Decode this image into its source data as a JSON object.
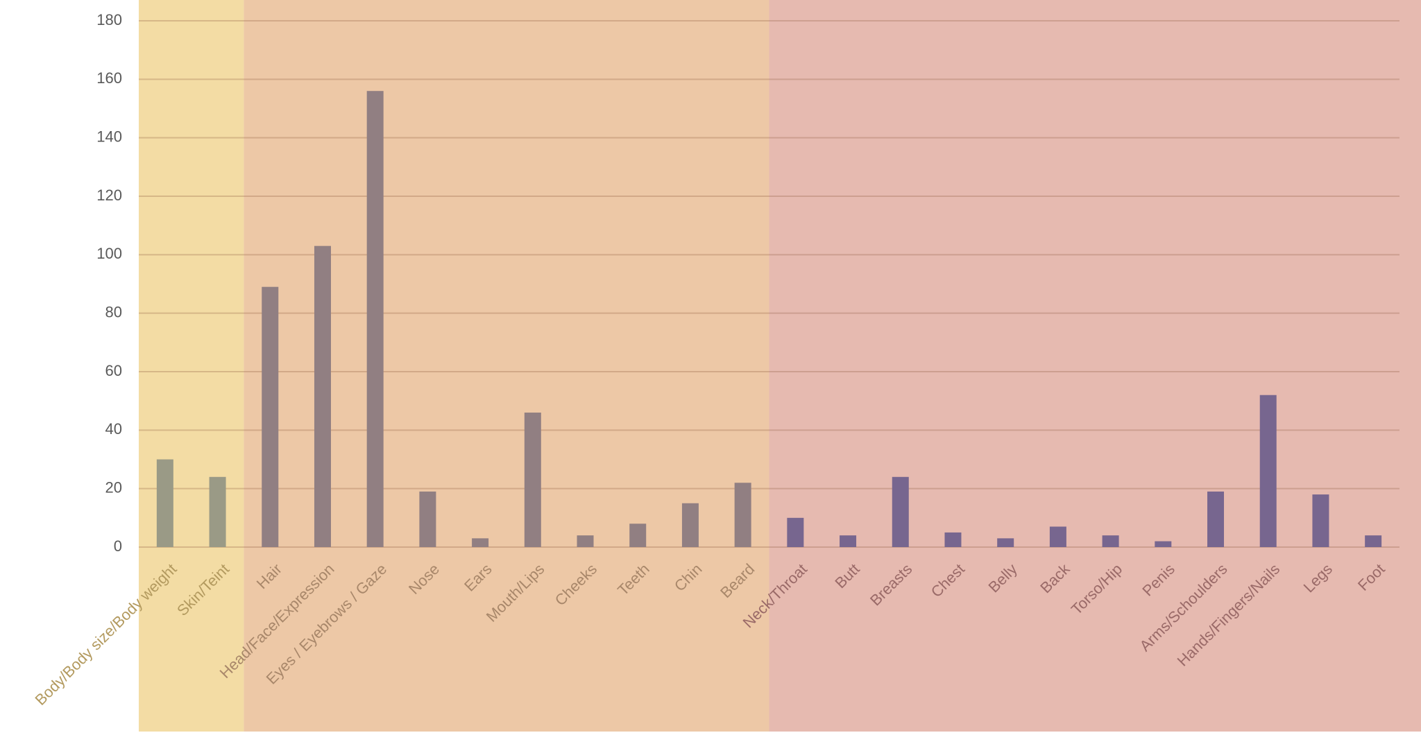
{
  "chart_data": {
    "type": "bar",
    "categories": [
      "Body/Body size/Body weight",
      "Skin/Teint",
      "Hair",
      "Head/Face/Expression",
      "Eyes / Eyebrows / Gaze",
      "Nose",
      "Ears",
      "Mouth/Lips",
      "Cheeks",
      "Teeth",
      "Chin",
      "Beard",
      "Neck/Throat",
      "Butt",
      "Breasts",
      "Chest",
      "Belly",
      "Back",
      "Torso/Hip",
      "Penis",
      "Arms/Schoulders",
      "Hands/Fingers/Nails",
      "Legs",
      "Foot"
    ],
    "series": [
      {
        "color": "#9a9a86",
        "band_color": "#f3dca4",
        "label_color": "#b39a5f",
        "values": [
          30,
          24,
          null,
          null,
          null,
          null,
          null,
          null,
          null,
          null,
          null,
          null,
          null,
          null,
          null,
          null,
          null,
          null,
          null,
          null,
          null,
          null,
          null,
          null
        ]
      },
      {
        "color": "#917f82",
        "band_color": "#edc8a6",
        "label_color": "#a8876a",
        "values": [
          null,
          null,
          89,
          103,
          156,
          19,
          3,
          46,
          4,
          8,
          15,
          22,
          null,
          null,
          null,
          null,
          null,
          null,
          null,
          null,
          null,
          null,
          null,
          null
        ]
      },
      {
        "color": "#77668f",
        "band_color": "#e6bab0",
        "label_color": "#9a6a68",
        "values": [
          null,
          null,
          null,
          null,
          null,
          null,
          null,
          null,
          null,
          null,
          null,
          null,
          10,
          4,
          24,
          5,
          3,
          7,
          4,
          2,
          19,
          52,
          18,
          4
        ]
      }
    ],
    "ylim": [
      0,
      180
    ],
    "yticks": [
      0,
      20,
      40,
      60,
      80,
      100,
      120,
      140,
      160,
      180
    ],
    "grid": true
  }
}
